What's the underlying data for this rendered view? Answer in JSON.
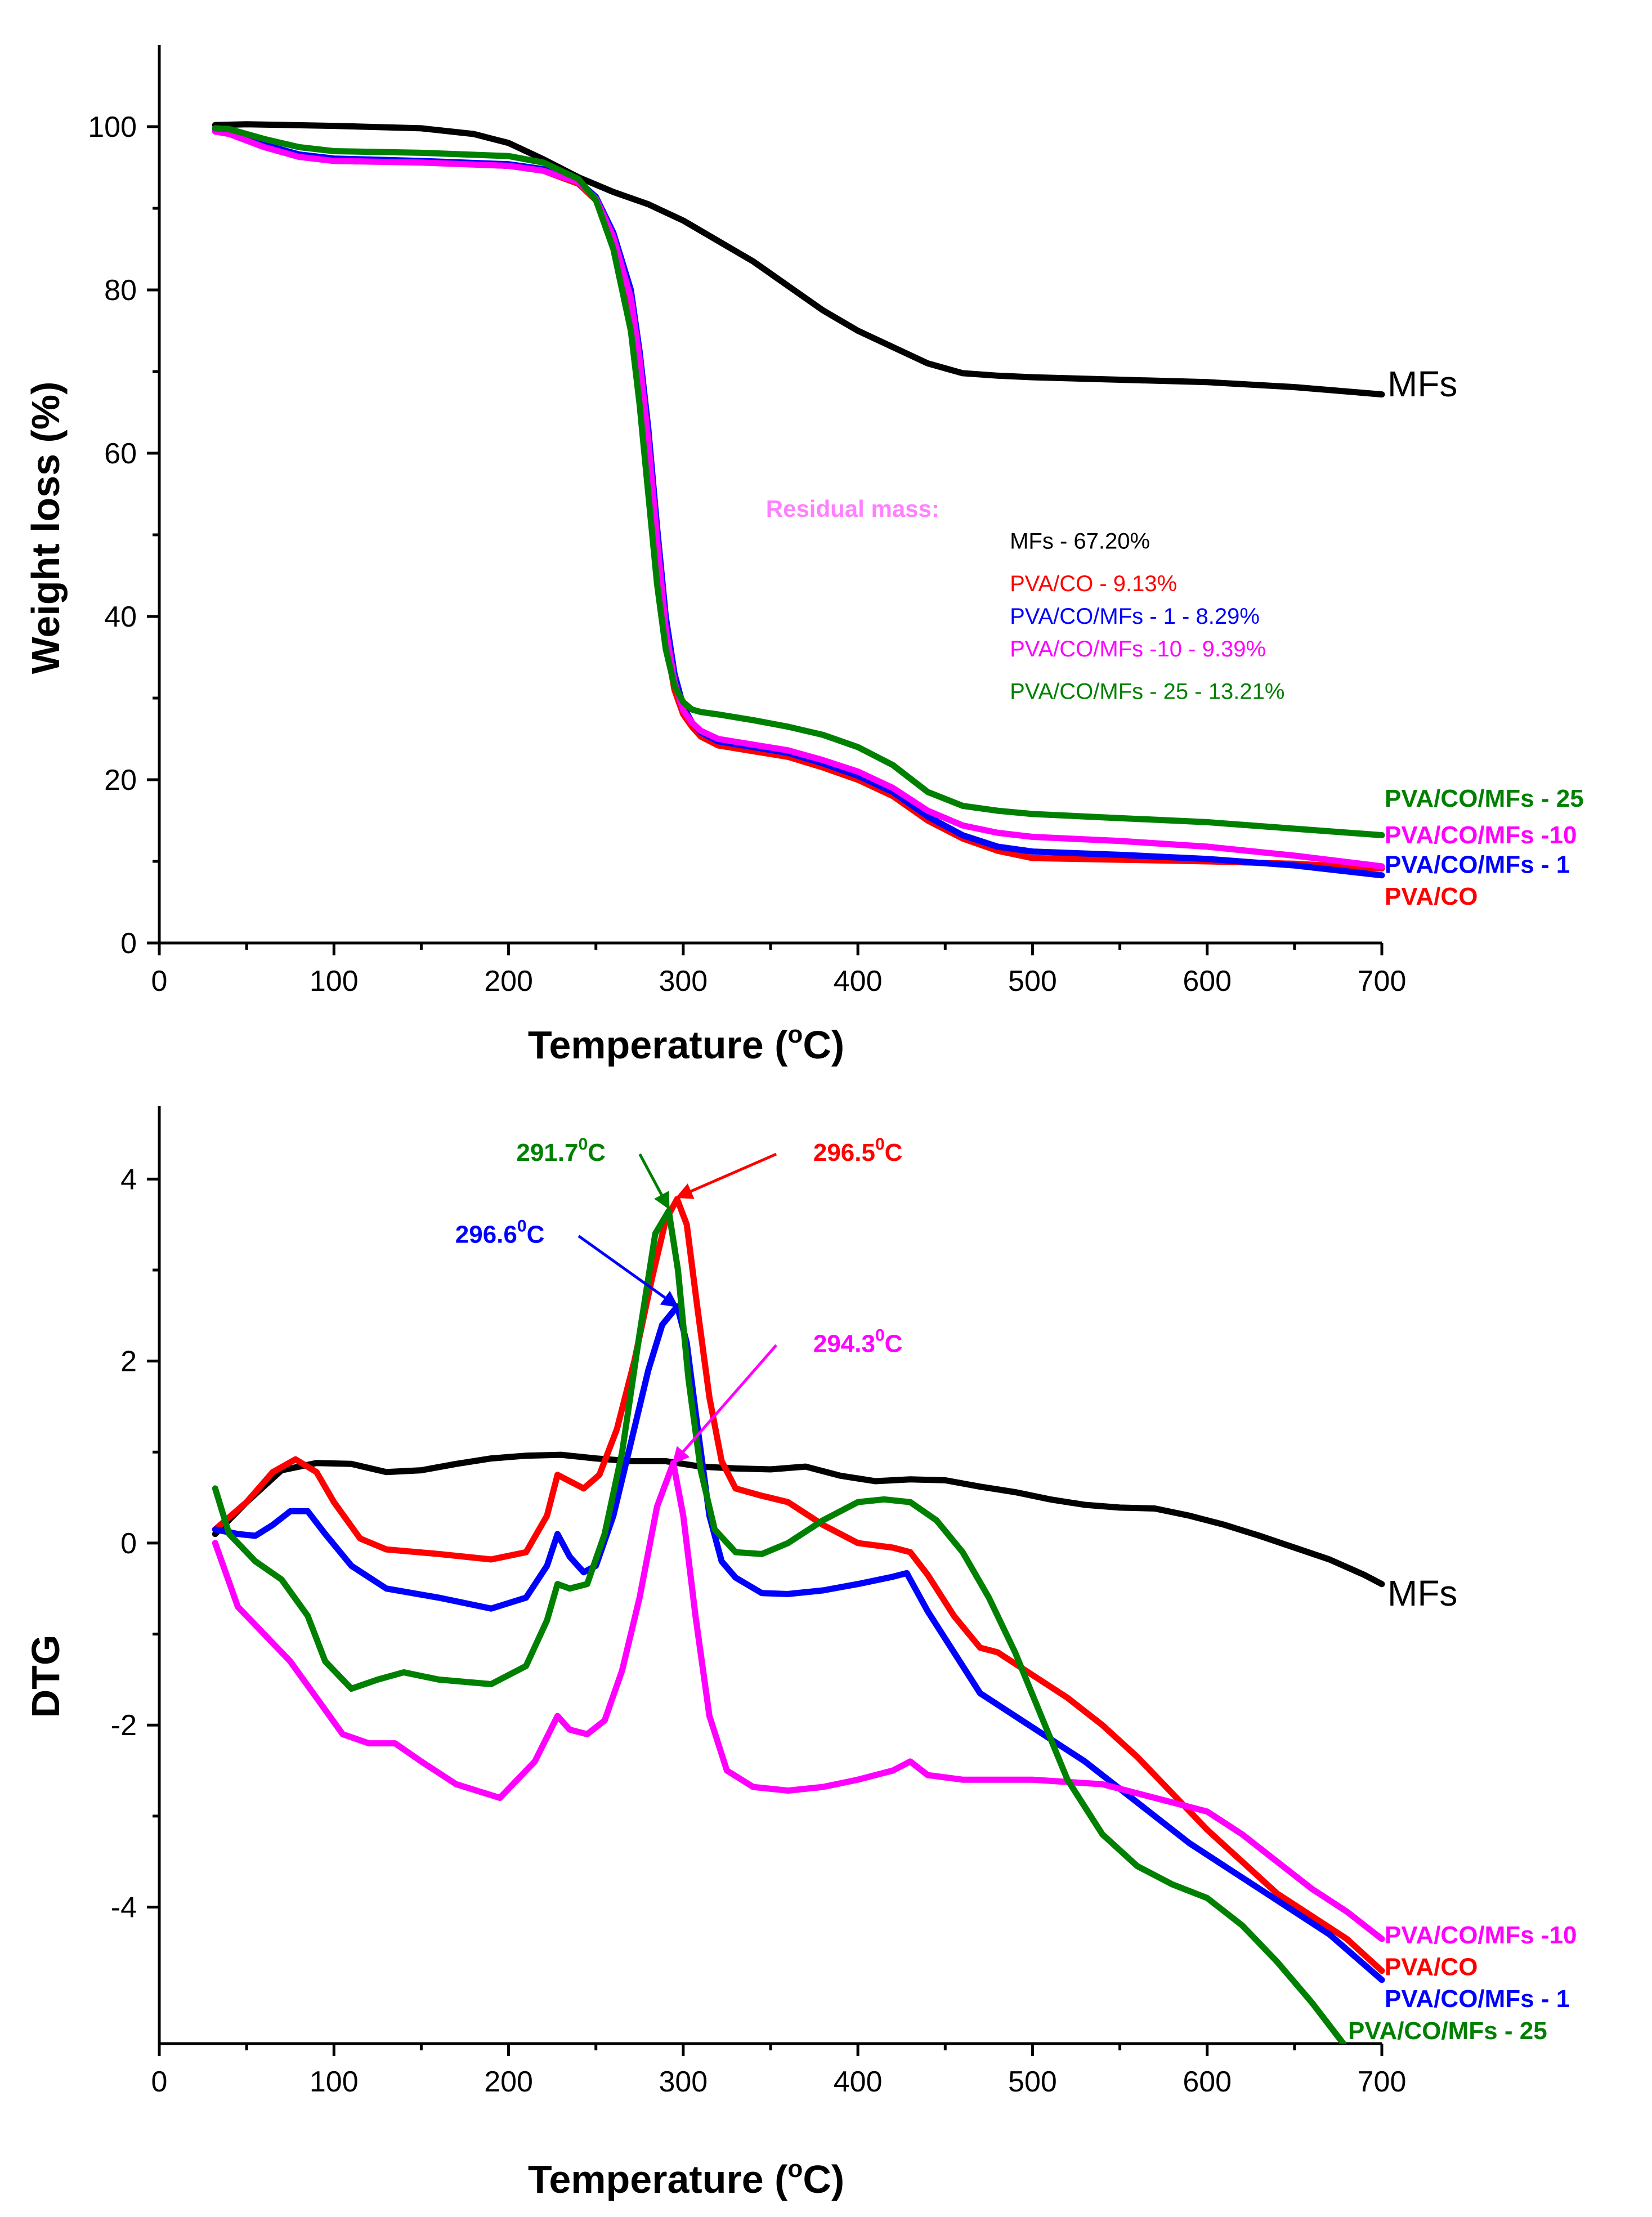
{
  "chart_data": [
    {
      "id": "tga",
      "type": "line",
      "xlabel": "Temperature (",
      "xlabel_sup": "o",
      "xlabel_tail": "C)",
      "ylabel": "Weight loss (%)",
      "xlim": [
        0,
        700
      ],
      "ylim": [
        0,
        110
      ],
      "xticks": [
        0,
        100,
        200,
        300,
        400,
        500,
        600,
        700
      ],
      "yticks": [
        0,
        20,
        40,
        60,
        80,
        100
      ],
      "series": [
        {
          "name": "MFs",
          "label": "MFs",
          "color": "#000000",
          "x": [
            32,
            50,
            100,
            150,
            180,
            200,
            220,
            240,
            260,
            280,
            300,
            320,
            340,
            360,
            380,
            400,
            420,
            440,
            460,
            480,
            500,
            550,
            600,
            650,
            700
          ],
          "y": [
            100.2,
            100.3,
            100.1,
            99.8,
            99.1,
            98.0,
            96.0,
            93.8,
            92.0,
            90.5,
            88.5,
            86.0,
            83.5,
            80.5,
            77.5,
            75.0,
            73.0,
            71.0,
            69.8,
            69.5,
            69.3,
            69.0,
            68.7,
            68.1,
            67.2
          ]
        },
        {
          "name": "PVA/CO",
          "label": "PVA/CO",
          "color": "#ff0000",
          "x": [
            32,
            40,
            60,
            80,
            100,
            150,
            200,
            220,
            240,
            250,
            260,
            270,
            275,
            280,
            285,
            290,
            295,
            300,
            305,
            310,
            320,
            340,
            360,
            380,
            400,
            420,
            440,
            460,
            480,
            500,
            550,
            600,
            650,
            700
          ],
          "y": [
            99.5,
            99.3,
            97.8,
            96.5,
            96.0,
            95.7,
            95.2,
            94.6,
            93.0,
            91.0,
            86.0,
            78.0,
            70.0,
            60.0,
            48.0,
            37.0,
            31.0,
            28.0,
            26.5,
            25.3,
            24.2,
            23.5,
            22.8,
            21.5,
            20.0,
            18.0,
            15.0,
            12.8,
            11.3,
            10.4,
            10.2,
            10.0,
            9.7,
            9.13
          ]
        },
        {
          "name": "PVA/CO/MFs - 1",
          "label": "PVA/CO/MFs - 1",
          "color": "#0000ff",
          "x": [
            32,
            40,
            60,
            80,
            100,
            150,
            200,
            220,
            240,
            250,
            260,
            270,
            275,
            280,
            285,
            290,
            295,
            300,
            305,
            310,
            320,
            340,
            360,
            380,
            400,
            420,
            440,
            460,
            480,
            500,
            550,
            600,
            650,
            700
          ],
          "y": [
            99.5,
            99.3,
            97.8,
            96.6,
            96.1,
            95.8,
            95.4,
            94.8,
            93.3,
            91.4,
            87.0,
            80.0,
            72.5,
            63.0,
            51.0,
            40.0,
            33.0,
            29.0,
            27.0,
            25.8,
            24.7,
            24.0,
            23.3,
            22.0,
            20.5,
            18.5,
            15.5,
            13.2,
            11.8,
            11.2,
            10.8,
            10.3,
            9.5,
            8.29
          ]
        },
        {
          "name": "PVA/CO/MFs -10",
          "label": "PVA/CO/MFs -10",
          "color": "#ff00ff",
          "x": [
            32,
            40,
            60,
            80,
            100,
            150,
            200,
            220,
            240,
            250,
            260,
            270,
            275,
            280,
            285,
            290,
            295,
            300,
            305,
            310,
            320,
            340,
            360,
            380,
            400,
            420,
            440,
            460,
            480,
            500,
            550,
            600,
            650,
            700
          ],
          "y": [
            99.4,
            99.1,
            97.5,
            96.3,
            95.8,
            95.6,
            95.2,
            94.6,
            93.2,
            91.2,
            86.5,
            79.0,
            71.5,
            61.5,
            49.5,
            38.5,
            32.0,
            28.5,
            27.0,
            26.0,
            25.0,
            24.3,
            23.6,
            22.4,
            21.0,
            19.0,
            16.2,
            14.4,
            13.5,
            13.0,
            12.5,
            11.8,
            10.7,
            9.39
          ]
        },
        {
          "name": "PVA/CO/MFs - 25",
          "label": "PVA/CO/MFs - 25",
          "color": "#008000",
          "x": [
            32,
            40,
            60,
            80,
            100,
            150,
            200,
            220,
            240,
            250,
            260,
            270,
            275,
            280,
            285,
            290,
            295,
            300,
            305,
            310,
            320,
            340,
            360,
            380,
            400,
            420,
            440,
            460,
            480,
            500,
            550,
            600,
            650,
            700
          ],
          "y": [
            99.8,
            99.7,
            98.5,
            97.5,
            97.0,
            96.8,
            96.4,
            95.6,
            93.6,
            91.0,
            85.0,
            75.0,
            66.0,
            55.0,
            44.0,
            36.0,
            31.5,
            29.5,
            28.6,
            28.3,
            28.0,
            27.3,
            26.5,
            25.5,
            24.0,
            21.8,
            18.5,
            16.8,
            16.2,
            15.8,
            15.3,
            14.8,
            14.0,
            13.21
          ]
        }
      ],
      "residual": {
        "title": "Residual mass:",
        "title_color": "#ff80ff",
        "entries": [
          {
            "text": "MFs - 67.20%",
            "color": "#000000"
          },
          {
            "text": "PVA/CO - 9.13%",
            "color": "#ff0000"
          },
          {
            "text": "PVA/CO/MFs - 1 - 8.29%",
            "color": "#0000ff"
          },
          {
            "text": "PVA/CO/MFs -10 - 9.39%",
            "color": "#ff00ff"
          },
          {
            "text": "PVA/CO/MFs - 25 - 13.21%",
            "color": "#008000"
          }
        ]
      },
      "end_labels": [
        {
          "series": "MFs",
          "text": "MFs",
          "y": 68.5
        },
        {
          "series": "PVA/CO/MFs - 25",
          "text": "PVA/CO/MFs - 25",
          "y": 17.8
        },
        {
          "series": "PVA/CO/MFs -10",
          "text": "PVA/CO/MFs -10",
          "y": 13.3
        },
        {
          "series": "PVA/CO/MFs - 1",
          "text": "PVA/CO/MFs - 1",
          "y": 9.7
        },
        {
          "series": "PVA/CO",
          "text": "PVA/CO",
          "y": 5.8
        }
      ]
    },
    {
      "id": "dtg",
      "type": "line",
      "xlabel": "Temperature (",
      "xlabel_sup": "o",
      "xlabel_tail": "C)",
      "ylabel": "DTG",
      "xlim": [
        0,
        700
      ],
      "ylim": [
        -5.5,
        4.8
      ],
      "xticks": [
        0,
        100,
        200,
        300,
        400,
        500,
        600,
        700
      ],
      "yticks": [
        -4,
        -2,
        0,
        2,
        4
      ],
      "series": [
        {
          "name": "MFs",
          "label": "MFs",
          "color": "#000000",
          "x": [
            32,
            50,
            70,
            90,
            110,
            130,
            150,
            170,
            190,
            210,
            230,
            250,
            270,
            290,
            310,
            330,
            350,
            370,
            390,
            410,
            430,
            450,
            470,
            490,
            510,
            530,
            550,
            570,
            590,
            610,
            630,
            650,
            670,
            690,
            700
          ],
          "y": [
            0.1,
            0.45,
            0.8,
            0.88,
            0.87,
            0.78,
            0.8,
            0.87,
            0.93,
            0.96,
            0.97,
            0.93,
            0.9,
            0.9,
            0.84,
            0.82,
            0.81,
            0.84,
            0.74,
            0.68,
            0.7,
            0.69,
            0.62,
            0.56,
            0.48,
            0.42,
            0.39,
            0.38,
            0.3,
            0.2,
            0.08,
            -0.05,
            -0.18,
            -0.35,
            -0.45
          ]
        },
        {
          "name": "PVA/CO",
          "label": "PVA/CO",
          "color": "#ff0000",
          "x": [
            32,
            50,
            65,
            78,
            90,
            100,
            115,
            130,
            160,
            190,
            210,
            222,
            228,
            235,
            243,
            252,
            262,
            272,
            282,
            290,
            296.5,
            302,
            308,
            315,
            322,
            330,
            345,
            360,
            380,
            400,
            420,
            430,
            440,
            455,
            470,
            480,
            500,
            520,
            540,
            560,
            580,
            600,
            620,
            640,
            660,
            680,
            700
          ],
          "y": [
            0.15,
            0.45,
            0.78,
            0.92,
            0.78,
            0.45,
            0.05,
            -0.07,
            -0.12,
            -0.18,
            -0.1,
            0.3,
            0.75,
            0.68,
            0.6,
            0.75,
            1.25,
            2.0,
            2.9,
            3.55,
            3.78,
            3.5,
            2.6,
            1.6,
            0.9,
            0.6,
            0.52,
            0.45,
            0.2,
            0.0,
            -0.05,
            -0.1,
            -0.35,
            -0.8,
            -1.15,
            -1.2,
            -1.45,
            -1.7,
            -2.0,
            -2.35,
            -2.75,
            -3.15,
            -3.5,
            -3.85,
            -4.1,
            -4.35,
            -4.7
          ]
        },
        {
          "name": "PVA/CO/MFs - 1",
          "label": "PVA/CO/MFs - 1",
          "color": "#0000ff",
          "x": [
            32,
            45,
            55,
            65,
            75,
            85,
            95,
            110,
            130,
            160,
            190,
            210,
            222,
            228,
            235,
            243,
            250,
            260,
            270,
            280,
            288,
            296.6,
            302,
            308,
            315,
            322,
            330,
            345,
            360,
            380,
            400,
            420,
            428,
            440,
            455,
            470,
            490,
            510,
            530,
            550,
            570,
            590,
            610,
            630,
            650,
            670,
            700
          ],
          "y": [
            0.15,
            0.1,
            0.08,
            0.2,
            0.35,
            0.35,
            0.1,
            -0.25,
            -0.5,
            -0.6,
            -0.72,
            -0.6,
            -0.25,
            0.1,
            -0.15,
            -0.32,
            -0.25,
            0.3,
            1.1,
            1.9,
            2.4,
            2.6,
            2.2,
            1.3,
            0.3,
            -0.2,
            -0.38,
            -0.55,
            -0.56,
            -0.52,
            -0.45,
            -0.37,
            -0.33,
            -0.75,
            -1.2,
            -1.65,
            -1.9,
            -2.15,
            -2.4,
            -2.7,
            -3.0,
            -3.3,
            -3.55,
            -3.8,
            -4.05,
            -4.3,
            -4.8
          ]
        },
        {
          "name": "PVA/CO/MFs -10",
          "label": "PVA/CO/MFs -10",
          "color": "#ff00ff",
          "x": [
            32,
            45,
            60,
            75,
            90,
            105,
            120,
            135,
            150,
            170,
            195,
            215,
            228,
            235,
            245,
            255,
            265,
            275,
            285,
            294.3,
            300,
            307,
            315,
            325,
            340,
            360,
            380,
            400,
            420,
            430,
            440,
            460,
            500,
            540,
            580,
            600,
            620,
            640,
            660,
            680,
            700
          ],
          "y": [
            0.0,
            -0.7,
            -1.0,
            -1.3,
            -1.7,
            -2.1,
            -2.2,
            -2.2,
            -2.4,
            -2.65,
            -2.8,
            -2.4,
            -1.9,
            -2.05,
            -2.1,
            -1.95,
            -1.4,
            -0.6,
            0.4,
            0.88,
            0.3,
            -0.8,
            -1.9,
            -2.5,
            -2.68,
            -2.72,
            -2.68,
            -2.6,
            -2.5,
            -2.4,
            -2.55,
            -2.6,
            -2.6,
            -2.65,
            -2.85,
            -2.95,
            -3.2,
            -3.5,
            -3.8,
            -4.05,
            -4.35
          ]
        },
        {
          "name": "PVA/CO/MFs - 25",
          "label": "PVA/CO/MFs - 25",
          "color": "#008000",
          "x": [
            32,
            40,
            55,
            70,
            85,
            95,
            110,
            125,
            140,
            160,
            190,
            210,
            222,
            228,
            235,
            245,
            255,
            265,
            275,
            284,
            291.7,
            297,
            303,
            310,
            318,
            330,
            345,
            360,
            380,
            400,
            415,
            430,
            445,
            460,
            475,
            490,
            505,
            520,
            540,
            560,
            580,
            600,
            620,
            640,
            660,
            678
          ],
          "y": [
            0.6,
            0.1,
            -0.2,
            -0.4,
            -0.8,
            -1.3,
            -1.6,
            -1.5,
            -1.42,
            -1.5,
            -1.55,
            -1.35,
            -0.85,
            -0.45,
            -0.5,
            -0.45,
            0.1,
            1.0,
            2.3,
            3.4,
            3.65,
            3.0,
            1.8,
            0.8,
            0.15,
            -0.1,
            -0.12,
            0.0,
            0.25,
            0.45,
            0.48,
            0.45,
            0.25,
            -0.1,
            -0.6,
            -1.2,
            -1.9,
            -2.6,
            -3.2,
            -3.55,
            -3.75,
            -3.9,
            -4.2,
            -4.6,
            -5.05,
            -5.5
          ]
        }
      ],
      "end_labels": [
        {
          "series": "MFs",
          "text": "MFs",
          "y": -0.55
        },
        {
          "series": "PVA/CO/MFs -10",
          "text": "PVA/CO/MFs -10",
          "y": -4.3
        },
        {
          "series": "PVA/CO",
          "text": "PVA/CO",
          "y": -4.65
        },
        {
          "series": "PVA/CO/MFs - 1",
          "text": "PVA/CO/MFs - 1",
          "y": -5.0
        },
        {
          "series": "PVA/CO/MFs - 25",
          "text": "PVA/CO/MFs - 25",
          "y": -5.35
        }
      ],
      "annotations": [
        {
          "text": "291.7",
          "sup": "0",
          "tail": "C",
          "color": "#008000",
          "label_x": 230,
          "label_y": 4.2,
          "tip_x": 291.7,
          "tip_y": 3.68
        },
        {
          "text": "296.5",
          "sup": "0",
          "tail": "C",
          "color": "#ff0000",
          "label_x": 400,
          "label_y": 4.2,
          "tip_x": 296.5,
          "tip_y": 3.8
        },
        {
          "text": "296.6",
          "sup": "0",
          "tail": "C",
          "color": "#0000ff",
          "label_x": 195,
          "label_y": 3.3,
          "tip_x": 296.6,
          "tip_y": 2.6
        },
        {
          "text": "294.3",
          "sup": "0",
          "tail": "C",
          "color": "#ff00ff",
          "label_x": 400,
          "label_y": 2.1,
          "tip_x": 294.3,
          "tip_y": 0.88
        }
      ]
    }
  ]
}
